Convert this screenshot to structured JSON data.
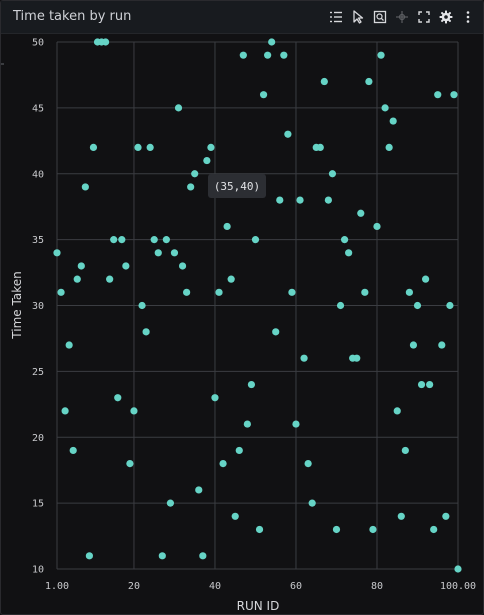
{
  "panel": {
    "title": "Time taken by run",
    "toolbar": [
      {
        "name": "legend-toggle-icon",
        "label": "Legend"
      },
      {
        "name": "pointer-icon",
        "label": "Select"
      },
      {
        "name": "zoom-box-icon",
        "label": "Zoom"
      },
      {
        "name": "pan-icon",
        "label": "Pan"
      },
      {
        "name": "fullscreen-icon",
        "label": "Fullscreen"
      },
      {
        "name": "settings-icon",
        "label": "Settings"
      },
      {
        "name": "more-options-icon",
        "label": "More"
      }
    ]
  },
  "tooltip": {
    "text": "(35,40)"
  },
  "colors": {
    "background": "#111113",
    "grid": "#3b3d42",
    "point": "#66d4c6"
  },
  "chart_data": {
    "type": "scatter",
    "title": "Time taken by run",
    "xlabel": "RUN ID",
    "ylabel": "Time Taken",
    "xlim": [
      1,
      100
    ],
    "ylim": [
      10,
      50
    ],
    "x_ticks": [
      1,
      20,
      40,
      60,
      80,
      100
    ],
    "x_tick_labels": [
      "1.00",
      "20",
      "40",
      "60",
      "80",
      "100.00"
    ],
    "y_ticks": [
      10,
      15,
      20,
      25,
      30,
      35,
      40,
      45,
      50
    ],
    "y_tick_labels": [
      "10",
      "15",
      "20",
      "25",
      "30",
      "35",
      "40",
      "45",
      "50"
    ],
    "grid": true,
    "series": [
      {
        "points": [
          [
            1,
            34
          ],
          [
            2,
            31
          ],
          [
            3,
            22
          ],
          [
            4,
            27
          ],
          [
            5,
            19
          ],
          [
            6,
            32
          ],
          [
            7,
            33
          ],
          [
            8,
            39
          ],
          [
            9,
            11
          ],
          [
            10,
            42
          ],
          [
            11,
            50
          ],
          [
            12,
            50
          ],
          [
            13,
            50
          ],
          [
            14,
            32
          ],
          [
            15,
            35
          ],
          [
            16,
            23
          ],
          [
            17,
            35
          ],
          [
            18,
            33
          ],
          [
            19,
            18
          ],
          [
            20,
            22
          ],
          [
            21,
            42
          ],
          [
            22,
            30
          ],
          [
            23,
            28
          ],
          [
            24,
            42
          ],
          [
            25,
            35
          ],
          [
            26,
            34
          ],
          [
            27,
            11
          ],
          [
            28,
            35
          ],
          [
            29,
            15
          ],
          [
            30,
            34
          ],
          [
            31,
            45
          ],
          [
            32,
            33
          ],
          [
            33,
            31
          ],
          [
            34,
            39
          ],
          [
            35,
            40
          ],
          [
            36,
            16
          ],
          [
            37,
            11
          ],
          [
            38,
            41
          ],
          [
            39,
            42
          ],
          [
            40,
            23
          ],
          [
            41,
            31
          ],
          [
            42,
            18
          ],
          [
            43,
            36
          ],
          [
            44,
            32
          ],
          [
            45,
            14
          ],
          [
            46,
            19
          ],
          [
            47,
            49
          ],
          [
            48,
            21
          ],
          [
            49,
            24
          ],
          [
            50,
            35
          ],
          [
            51,
            13
          ],
          [
            52,
            46
          ],
          [
            53,
            49
          ],
          [
            54,
            50
          ],
          [
            55,
            28
          ],
          [
            56,
            38
          ],
          [
            57,
            49
          ],
          [
            58,
            43
          ],
          [
            59,
            31
          ],
          [
            60,
            21
          ],
          [
            61,
            38
          ],
          [
            62,
            26
          ],
          [
            63,
            18
          ],
          [
            64,
            15
          ],
          [
            65,
            42
          ],
          [
            66,
            42
          ],
          [
            67,
            47
          ],
          [
            68,
            38
          ],
          [
            69,
            40
          ],
          [
            70,
            13
          ],
          [
            71,
            30
          ],
          [
            72,
            35
          ],
          [
            73,
            34
          ],
          [
            74,
            26
          ],
          [
            75,
            26
          ],
          [
            76,
            37
          ],
          [
            77,
            31
          ],
          [
            78,
            47
          ],
          [
            79,
            13
          ],
          [
            80,
            36
          ],
          [
            81,
            49
          ],
          [
            82,
            45
          ],
          [
            83,
            42
          ],
          [
            84,
            44
          ],
          [
            85,
            22
          ],
          [
            86,
            14
          ],
          [
            87,
            19
          ],
          [
            88,
            31
          ],
          [
            89,
            27
          ],
          [
            90,
            30
          ],
          [
            91,
            24
          ],
          [
            92,
            32
          ],
          [
            93,
            24
          ],
          [
            94,
            13
          ],
          [
            95,
            46
          ],
          [
            96,
            27
          ],
          [
            97,
            14
          ],
          [
            98,
            30
          ],
          [
            99,
            46
          ],
          [
            100,
            10
          ]
        ]
      }
    ]
  }
}
